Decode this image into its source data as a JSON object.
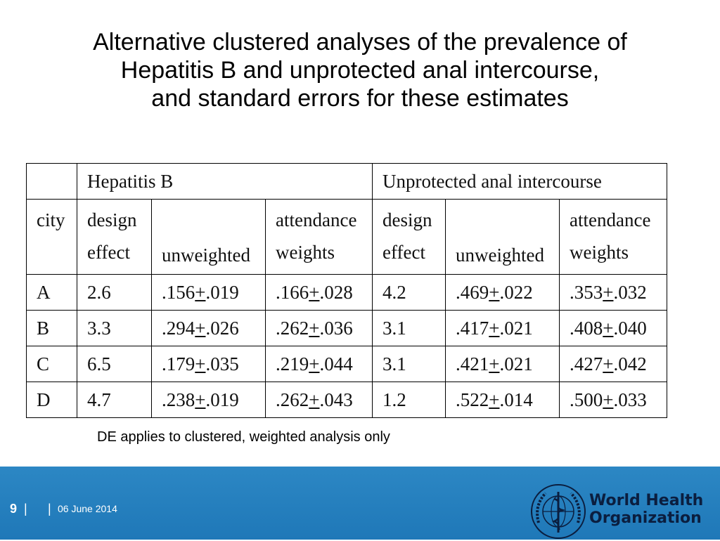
{
  "title": {
    "line1": "Alternative clustered analyses of the prevalence of",
    "line2": "Hepatitis B and unprotected anal intercourse,",
    "line3": "and standard errors for these estimates"
  },
  "table": {
    "groups": [
      "Hepatitis B",
      "Unprotected anal intercourse"
    ],
    "headers": {
      "city": "city",
      "design": [
        "design",
        "effect"
      ],
      "unweighted": "unweighted",
      "attendance": [
        "attendance",
        "weights"
      ]
    },
    "pm": "+",
    "rows": [
      {
        "city": "A",
        "hb_de": "2.6",
        "hb_uw": [
          ".156",
          ".019"
        ],
        "hb_aw": [
          ".166",
          ".028"
        ],
        "uai_de": "4.2",
        "uai_uw": [
          ".469",
          ".022"
        ],
        "uai_aw": [
          ".353",
          ".032"
        ]
      },
      {
        "city": "B",
        "hb_de": "3.3",
        "hb_uw": [
          ".294",
          ".026"
        ],
        "hb_aw": [
          ".262",
          ".036"
        ],
        "uai_de": "3.1",
        "uai_uw": [
          ".417",
          ".021"
        ],
        "uai_aw": [
          ".408",
          ".040"
        ]
      },
      {
        "city": "C",
        "hb_de": "6.5",
        "hb_uw": [
          ".179",
          ".035"
        ],
        "hb_aw": [
          ".219",
          ".044"
        ],
        "uai_de": "3.1",
        "uai_uw": [
          ".421",
          ".021"
        ],
        "uai_aw": [
          ".427",
          ".042"
        ]
      },
      {
        "city": "D",
        "hb_de": "4.7",
        "hb_uw": [
          ".238",
          ".019"
        ],
        "hb_aw": [
          ".262",
          ".043"
        ],
        "uai_de": "1.2",
        "uai_uw": [
          ".522",
          ".014"
        ],
        "uai_aw": [
          ".500",
          ".033"
        ]
      }
    ]
  },
  "footnote": "DE applies to clustered, weighted analysis only",
  "footer": {
    "page": "9",
    "separator": "|",
    "date": "06 June 2014",
    "org_line1": "World Health",
    "org_line2": "Organization",
    "colors": {
      "band": "#1f78b8",
      "text": "#ffffff",
      "org_text": "#0b1e3f"
    }
  },
  "icons": {
    "logo": "who-emblem-icon"
  }
}
